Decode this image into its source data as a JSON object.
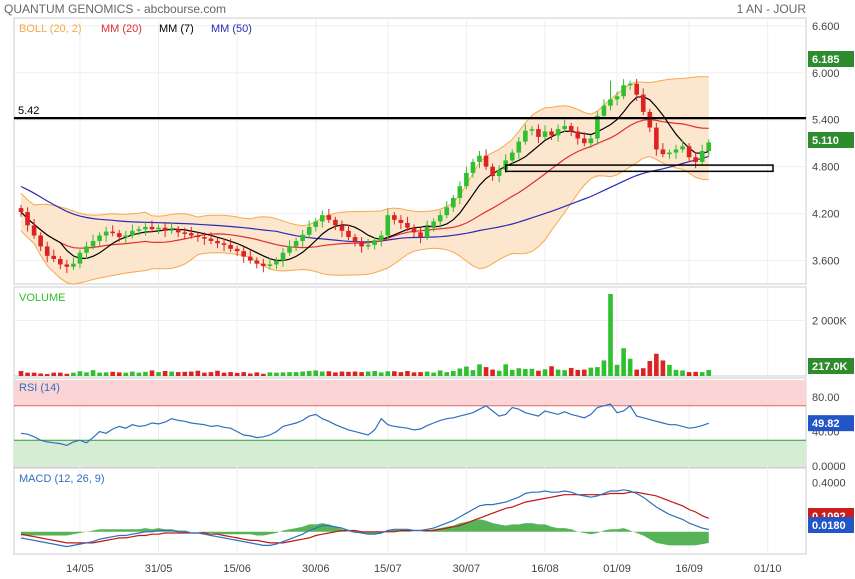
{
  "header": {
    "title": "QUANTUM GENOMICS - abcbourse.com",
    "timeframe": "1 AN - JOUR"
  },
  "colors": {
    "up": "#2fbf2f",
    "down": "#dd2222",
    "boll_fill": "#fde2c6",
    "boll_line": "#f5a94a",
    "mm20": "#e03030",
    "mm7": "#000000",
    "mm50": "#2b2bb5",
    "volume": "#2fbf2f",
    "volume_down": "#dd2222",
    "rsi_line": "#2f6fbf",
    "macd_line": "#2f6fbf",
    "signal_line": "#c01818",
    "hist": "#3aa63a",
    "badge_green": "#2e8b2e",
    "badge_blue": "#2256c8",
    "badge_red": "#cc1d1d"
  },
  "chart_data": [
    {
      "type": "candlestick",
      "panel": "price",
      "legend": [
        {
          "label": "BOLL (20, 2)",
          "color": "#f5a94a"
        },
        {
          "label": "MM (20)",
          "color": "#e03030"
        },
        {
          "label": "MM (7)",
          "color": "#000000"
        },
        {
          "label": "MM (50)",
          "color": "#2b2bb5"
        }
      ],
      "y_ticks": [
        "3.600",
        "4.200",
        "4.800",
        "5.400",
        "6.000",
        "6.600"
      ],
      "ylim": [
        3.3,
        6.7
      ],
      "x_tick_labels": [
        "14/05",
        "31/05",
        "15/06",
        "30/06",
        "15/07",
        "30/07",
        "16/08",
        "01/09",
        "16/09",
        "01/10"
      ],
      "x_tick_index": [
        9,
        21,
        33,
        45,
        56,
        68,
        80,
        91,
        102,
        114
      ],
      "resistance": {
        "value": 5.42,
        "label": "5.42"
      },
      "support_box": [
        4.74,
        4.82
      ],
      "last_badge": {
        "value": "6.185"
      },
      "close_badge": {
        "value": "5.110"
      },
      "close": [
        4.22,
        4.05,
        3.92,
        3.78,
        3.66,
        3.62,
        3.55,
        3.52,
        3.56,
        3.7,
        3.78,
        3.85,
        3.92,
        3.97,
        3.95,
        3.9,
        3.92,
        3.98,
        4.0,
        4.03,
        4.0,
        4.02,
        3.98,
        4.0,
        3.96,
        3.95,
        3.92,
        3.9,
        3.88,
        3.85,
        3.82,
        3.8,
        3.75,
        3.72,
        3.65,
        3.6,
        3.56,
        3.53,
        3.55,
        3.6,
        3.7,
        3.78,
        3.85,
        3.93,
        4.03,
        4.1,
        4.18,
        4.12,
        4.05,
        3.98,
        3.9,
        3.84,
        3.78,
        3.8,
        3.86,
        3.92,
        4.18,
        4.12,
        4.08,
        4.02,
        3.96,
        3.9,
        4.03,
        4.1,
        4.18,
        4.28,
        4.4,
        4.55,
        4.72,
        4.86,
        4.94,
        4.8,
        4.68,
        4.76,
        4.88,
        4.98,
        5.12,
        5.26,
        5.28,
        5.18,
        5.25,
        5.2,
        5.28,
        5.32,
        5.25,
        5.16,
        5.1,
        5.16,
        5.45,
        5.58,
        5.66,
        5.7,
        5.84,
        5.86,
        5.72,
        5.5,
        5.3,
        5.02,
        4.96,
        4.98,
        5.02,
        5.06,
        4.92,
        4.86,
        5.0,
        5.11
      ],
      "volume_ticks": [
        "2 000K"
      ],
      "volume_badge": {
        "value": "217.0K"
      },
      "volume_k": [
        180,
        120,
        120,
        90,
        70,
        120,
        120,
        80,
        120,
        170,
        130,
        210,
        120,
        130,
        150,
        130,
        120,
        160,
        120,
        150,
        200,
        140,
        180,
        160,
        140,
        150,
        160,
        190,
        120,
        140,
        190,
        120,
        140,
        110,
        140,
        90,
        130,
        80,
        130,
        120,
        130,
        140,
        140,
        160,
        180,
        200,
        160,
        170,
        130,
        160,
        150,
        160,
        140,
        160,
        180,
        130,
        170,
        170,
        140,
        180,
        130,
        140,
        160,
        120,
        200,
        140,
        180,
        270,
        340,
        210,
        420,
        320,
        230,
        190,
        420,
        220,
        280,
        250,
        260,
        190,
        240,
        350,
        230,
        210,
        290,
        220,
        230,
        300,
        320,
        560,
        3000,
        400,
        1000,
        620,
        230,
        280,
        540,
        800,
        560,
        400,
        220,
        200,
        140,
        150,
        140,
        217
      ],
      "rsi_label": "RSI (14)",
      "rsi_ticks": [
        "80.00",
        "40.00",
        "0.0000"
      ],
      "rsi_bands": [
        70,
        30
      ],
      "rsi_badge": {
        "value": "49.82"
      },
      "rsi": [
        38,
        37,
        34,
        30,
        28,
        27,
        26,
        24,
        28,
        30,
        27,
        33,
        40,
        38,
        43,
        46,
        44,
        48,
        46,
        47,
        50,
        49,
        51,
        55,
        53,
        52,
        50,
        49,
        48,
        46,
        47,
        45,
        44,
        40,
        36,
        35,
        33,
        34,
        36,
        40,
        46,
        48,
        50,
        53,
        58,
        60,
        55,
        52,
        48,
        45,
        42,
        40,
        38,
        36,
        42,
        55,
        48,
        46,
        45,
        44,
        42,
        43,
        47,
        50,
        53,
        55,
        56,
        58,
        60,
        62,
        66,
        70,
        64,
        58,
        60,
        68,
        66,
        62,
        60,
        58,
        64,
        62,
        60,
        63,
        60,
        58,
        56,
        60,
        68,
        70,
        72,
        62,
        64,
        70,
        58,
        56,
        54,
        52,
        50,
        48,
        48,
        46,
        44,
        45,
        47,
        49.82
      ],
      "macd_label": "MACD (12, 26, 9)",
      "macd_ticks": [
        "0.4000"
      ],
      "macd_badges": {
        "signal": "0.1092",
        "macd": "0.0180"
      },
      "macd": [
        -0.05,
        -0.06,
        -0.07,
        -0.08,
        -0.09,
        -0.1,
        -0.11,
        -0.12,
        -0.11,
        -0.1,
        -0.09,
        -0.08,
        -0.06,
        -0.05,
        -0.04,
        -0.03,
        -0.03,
        -0.02,
        -0.01,
        0.0,
        0.0,
        0.01,
        0.01,
        0.01,
        0.0,
        0.0,
        -0.01,
        -0.01,
        -0.02,
        -0.03,
        -0.04,
        -0.05,
        -0.06,
        -0.07,
        -0.08,
        -0.09,
        -0.1,
        -0.11,
        -0.11,
        -0.1,
        -0.08,
        -0.06,
        -0.04,
        -0.02,
        0.01,
        0.03,
        0.05,
        0.05,
        0.04,
        0.03,
        0.01,
        0.0,
        -0.01,
        -0.02,
        -0.02,
        -0.01,
        0.01,
        0.02,
        0.02,
        0.02,
        0.01,
        0.01,
        0.02,
        0.03,
        0.05,
        0.07,
        0.09,
        0.12,
        0.15,
        0.18,
        0.21,
        0.22,
        0.22,
        0.23,
        0.24,
        0.26,
        0.28,
        0.31,
        0.32,
        0.32,
        0.33,
        0.32,
        0.32,
        0.33,
        0.32,
        0.3,
        0.29,
        0.28,
        0.29,
        0.31,
        0.33,
        0.33,
        0.34,
        0.33,
        0.31,
        0.28,
        0.24,
        0.2,
        0.17,
        0.14,
        0.12,
        0.1,
        0.07,
        0.05,
        0.03,
        0.018
      ],
      "signal": [
        -0.02,
        -0.03,
        -0.04,
        -0.05,
        -0.06,
        -0.07,
        -0.08,
        -0.09,
        -0.09,
        -0.09,
        -0.09,
        -0.09,
        -0.08,
        -0.07,
        -0.06,
        -0.05,
        -0.05,
        -0.04,
        -0.03,
        -0.03,
        -0.02,
        -0.02,
        -0.01,
        -0.01,
        -0.01,
        -0.01,
        -0.01,
        -0.01,
        -0.01,
        -0.02,
        -0.02,
        -0.03,
        -0.04,
        -0.05,
        -0.06,
        -0.07,
        -0.07,
        -0.08,
        -0.09,
        -0.09,
        -0.09,
        -0.08,
        -0.07,
        -0.06,
        -0.05,
        -0.03,
        -0.02,
        -0.01,
        0.0,
        0.01,
        0.01,
        0.01,
        0.0,
        0.0,
        0.0,
        0.0,
        0.0,
        0.0,
        0.01,
        0.01,
        0.01,
        0.01,
        0.01,
        0.01,
        0.02,
        0.03,
        0.04,
        0.05,
        0.07,
        0.09,
        0.11,
        0.13,
        0.15,
        0.17,
        0.19,
        0.2,
        0.22,
        0.24,
        0.25,
        0.26,
        0.27,
        0.28,
        0.29,
        0.3,
        0.3,
        0.3,
        0.3,
        0.3,
        0.3,
        0.3,
        0.31,
        0.31,
        0.31,
        0.32,
        0.32,
        0.31,
        0.3,
        0.29,
        0.27,
        0.25,
        0.23,
        0.21,
        0.18,
        0.16,
        0.13,
        0.109
      ],
      "macd_ylim": [
        -0.18,
        0.5
      ]
    }
  ]
}
